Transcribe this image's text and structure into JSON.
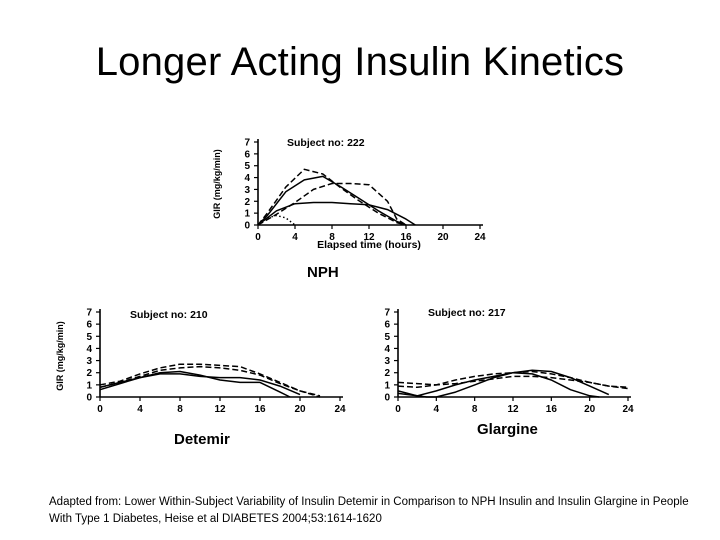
{
  "title": "Longer Acting Insulin Kinetics",
  "captions": {
    "nph": "NPH",
    "detemir": "Detemir",
    "glargine": "Glargine"
  },
  "footnote": "Adapted from: Lower Within-Subject Variability of Insulin Detemir in Comparison to NPH Insulin and Insulin Glargine in People With Type 1 Diabetes, Heise et al DIABETES 2004;53:1614-1620",
  "chart_data": [
    {
      "type": "line",
      "title": "Subject no: 222",
      "xlabel": "Elapsed time (hours)",
      "ylabel": "GIR (mg/kg/min)",
      "xlim": [
        0,
        24
      ],
      "ylim": [
        0,
        7
      ],
      "x_ticks": [
        0,
        4,
        8,
        12,
        16,
        20,
        24
      ],
      "y_ticks": [
        0,
        1,
        2,
        3,
        4,
        5,
        6,
        7
      ],
      "series": [
        {
          "style": "solid",
          "x": [
            0,
            1,
            3,
            5,
            7,
            9,
            11,
            13,
            15,
            16
          ],
          "y": [
            0,
            0.8,
            2.8,
            3.8,
            4.1,
            3.2,
            2.2,
            1.2,
            0.3,
            0
          ]
        },
        {
          "style": "dashed",
          "x": [
            0,
            1,
            3,
            5,
            7,
            9,
            11,
            13,
            15,
            16
          ],
          "y": [
            0,
            1.0,
            3.2,
            4.7,
            4.3,
            3.1,
            2.0,
            1.0,
            0.2,
            0
          ]
        },
        {
          "style": "dashed",
          "x": [
            0,
            2,
            4,
            6,
            8,
            10,
            12,
            14,
            15,
            16
          ],
          "y": [
            0,
            0.9,
            1.9,
            3.0,
            3.5,
            3.5,
            3.4,
            2.0,
            0.5,
            0
          ]
        },
        {
          "style": "solid",
          "x": [
            0,
            2,
            4,
            6,
            8,
            10,
            12,
            14,
            16,
            17
          ],
          "y": [
            0,
            1.2,
            1.8,
            1.9,
            1.9,
            1.8,
            1.7,
            1.3,
            0.5,
            0
          ]
        },
        {
          "style": "dotted",
          "x": [
            0,
            1,
            2,
            3,
            4
          ],
          "y": [
            0,
            0.6,
            0.8,
            0.6,
            0
          ]
        }
      ]
    },
    {
      "type": "line",
      "title": "Subject no: 210",
      "ylabel": "GIR (mg/kg/min)",
      "xlim": [
        0,
        24
      ],
      "ylim": [
        0,
        7
      ],
      "x_ticks": [
        0,
        4,
        8,
        12,
        16,
        20,
        24
      ],
      "y_ticks": [
        0,
        1,
        2,
        3,
        4,
        5,
        6,
        7
      ],
      "series": [
        {
          "style": "dashed",
          "x": [
            0,
            2,
            4,
            6,
            8,
            10,
            12,
            14,
            16,
            18,
            20,
            22
          ],
          "y": [
            1.0,
            1.3,
            1.9,
            2.4,
            2.7,
            2.7,
            2.6,
            2.5,
            1.9,
            1.2,
            0.5,
            0
          ]
        },
        {
          "style": "dashed",
          "x": [
            0,
            2,
            4,
            6,
            8,
            10,
            12,
            14,
            16,
            18,
            20,
            22
          ],
          "y": [
            0.8,
            1.2,
            1.7,
            2.2,
            2.4,
            2.5,
            2.4,
            2.2,
            1.8,
            1.1,
            0.5,
            0.1
          ]
        },
        {
          "style": "solid",
          "x": [
            0,
            2,
            4,
            6,
            8,
            10,
            12,
            14,
            16,
            18,
            19
          ],
          "y": [
            0.8,
            1.2,
            1.6,
            2.0,
            2.1,
            1.8,
            1.4,
            1.2,
            1.2,
            0.4,
            0
          ]
        },
        {
          "style": "solid",
          "x": [
            0,
            2,
            4,
            6,
            8,
            10,
            12,
            14,
            16,
            18,
            20
          ],
          "y": [
            0.6,
            1.1,
            1.6,
            1.9,
            1.9,
            1.7,
            1.6,
            1.6,
            1.4,
            0.9,
            0.2
          ]
        }
      ]
    },
    {
      "type": "line",
      "title": "Subject no: 217",
      "xlim": [
        0,
        24
      ],
      "ylim": [
        0,
        7
      ],
      "x_ticks": [
        0,
        4,
        8,
        12,
        16,
        20,
        24
      ],
      "y_ticks": [
        0,
        1,
        2,
        3,
        4,
        5,
        6,
        7
      ],
      "series": [
        {
          "style": "dashed",
          "x": [
            0,
            2,
            4,
            6,
            8,
            10,
            12,
            14,
            16,
            18,
            20,
            22,
            24
          ],
          "y": [
            1.2,
            1.1,
            1.0,
            1.1,
            1.3,
            1.5,
            1.7,
            1.7,
            1.6,
            1.4,
            1.2,
            0.9,
            0.7
          ]
        },
        {
          "style": "dashed",
          "x": [
            0,
            2,
            4,
            6,
            8,
            10,
            12,
            14,
            16,
            18,
            20,
            22,
            24
          ],
          "y": [
            0.9,
            0.8,
            1.0,
            1.4,
            1.7,
            1.9,
            2.0,
            2.1,
            1.9,
            1.6,
            1.2,
            0.9,
            0.8
          ]
        },
        {
          "style": "solid",
          "x": [
            0,
            2,
            4,
            6,
            8,
            10,
            12,
            14,
            16,
            18,
            20,
            22
          ],
          "y": [
            0.3,
            0.1,
            0.5,
            1.0,
            1.4,
            1.7,
            2.0,
            2.2,
            2.1,
            1.6,
            0.9,
            0.2
          ]
        },
        {
          "style": "solid",
          "x": [
            0,
            2,
            3,
            4,
            6,
            8,
            10,
            12,
            14,
            16,
            18,
            20,
            21
          ],
          "y": [
            0.5,
            0.1,
            0,
            0,
            0.4,
            1.0,
            1.6,
            2.0,
            1.9,
            1.4,
            0.6,
            0.1,
            0
          ]
        }
      ]
    }
  ]
}
